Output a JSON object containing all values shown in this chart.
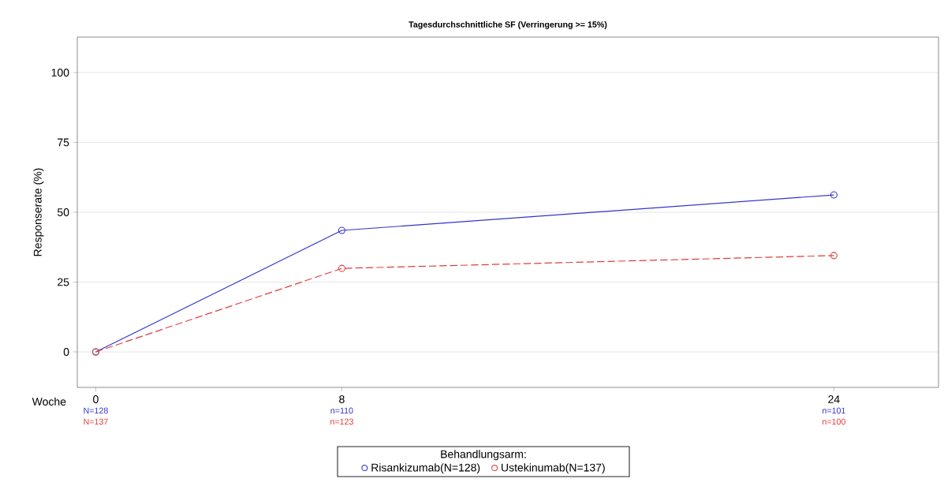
{
  "chart_data": {
    "type": "line",
    "title": "Tagesdurchschnittliche SF (Verringerung >= 15%)",
    "xlabel": "Woche",
    "ylabel": "Responserate (%)",
    "legend_title": "Behandlungsarm:",
    "x": [
      0,
      8,
      24
    ],
    "xlim": [
      -0.6,
      27.4
    ],
    "xticks": [
      0,
      8,
      24
    ],
    "ylim": [
      -12.7,
      112.7
    ],
    "yticks": [
      0,
      25,
      50,
      75,
      100
    ],
    "series": [
      {
        "name": "Risankizumab(N=128)",
        "color": "#3333cc",
        "values": [
          0,
          43.5,
          56.2
        ],
        "line_style": "solid"
      },
      {
        "name": "Ustekinumab(N=137)",
        "color": "#e03c3c",
        "values": [
          0,
          29.9,
          34.5
        ],
        "line_style": "dashed"
      }
    ],
    "annotations": [
      "N=128",
      "N=137",
      "n=110",
      "n=123",
      "n=101",
      "n=100"
    ],
    "marker": "circle",
    "grid": "y",
    "legend": "bottom"
  }
}
